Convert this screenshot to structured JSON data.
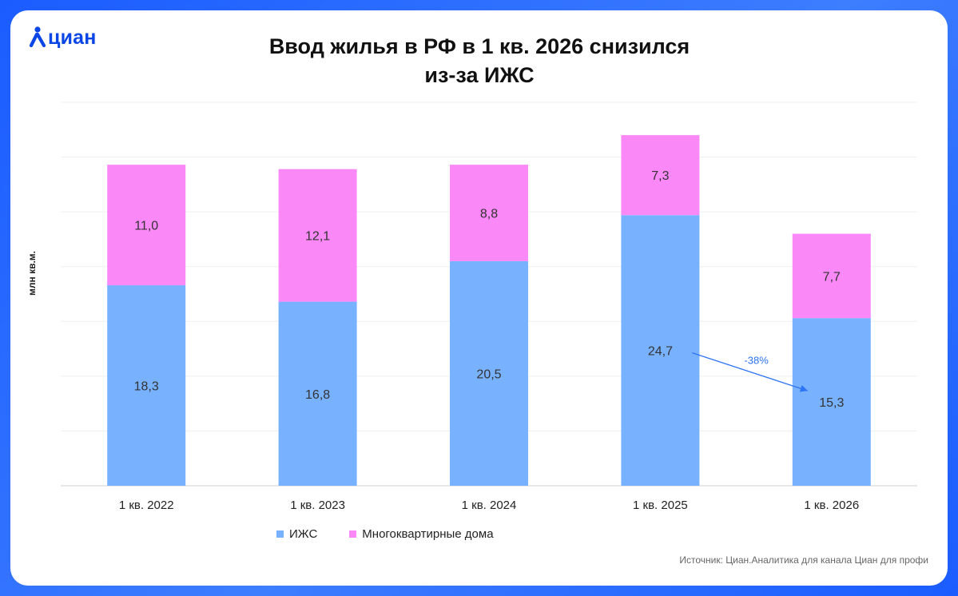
{
  "logo": {
    "text": "циан"
  },
  "chart_data": {
    "type": "bar",
    "stacked": true,
    "title": "Ввод жилья в РФ в 1 кв. 2026 снизился из-за ИЖС",
    "title_lines": [
      "Ввод жилья в РФ в 1 кв. 2026 снизился",
      "из-за ИЖС"
    ],
    "ylabel": "млн кв.м.",
    "xlabel": "",
    "categories": [
      "1 кв. 2022",
      "1 кв. 2023",
      "1 кв. 2024",
      "1 кв. 2025",
      "1 кв. 2026"
    ],
    "series": [
      {
        "name": "ИЖС",
        "color": "#78b2ff",
        "values": [
          18.3,
          16.8,
          20.5,
          24.7,
          15.3
        ],
        "labels": [
          "18,3",
          "16,8",
          "20,5",
          "24,7",
          "15,3"
        ]
      },
      {
        "name": "Многоквартирные дома",
        "color": "#fa88f6",
        "values": [
          11.0,
          12.1,
          8.8,
          7.3,
          7.7
        ],
        "labels": [
          "11,0",
          "12,1",
          "8,8",
          "7,3",
          "7,7"
        ]
      }
    ],
    "ylim": [
      0,
      35
    ],
    "grid": true,
    "legend_position": "bottom-left",
    "annotation": {
      "text": "-38%",
      "from_category": "1 кв. 2025",
      "to_category": "1 кв. 2026",
      "series": "ИЖС",
      "color": "#2d73f5"
    }
  },
  "source": "Источник: Циан.Аналитика для канала Циан для профи"
}
